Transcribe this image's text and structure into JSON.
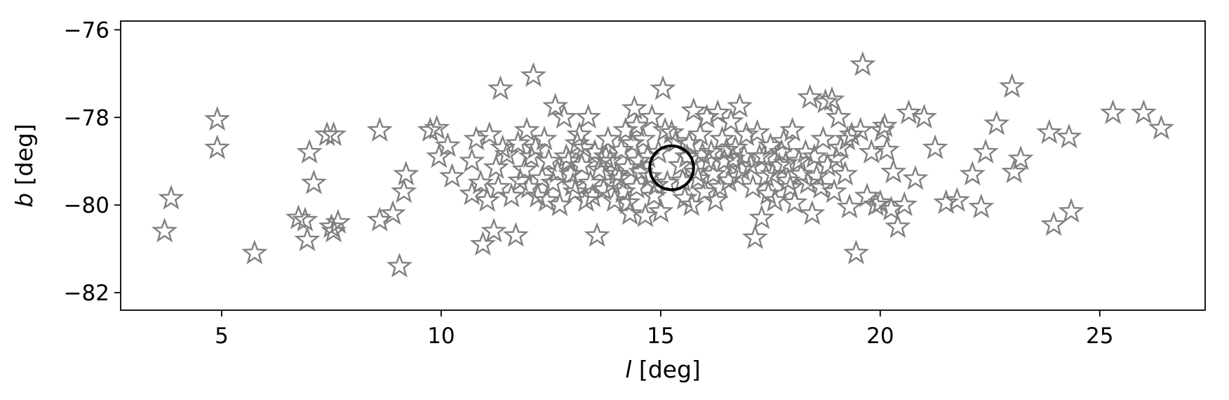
{
  "chart_data": {
    "type": "scatter",
    "title": "",
    "xlabel_var": "l",
    "xlabel_unit": " [deg]",
    "ylabel_var": "b",
    "ylabel_unit": " [deg]",
    "xlim": [
      2.7,
      27.4
    ],
    "ylim": [
      -82.4,
      -75.8
    ],
    "xticks": [
      5,
      10,
      15,
      20,
      25
    ],
    "yticks": [
      -76,
      -78,
      -80,
      -82
    ],
    "grid": false,
    "legend": "none",
    "marker_color": "#808080",
    "highlight_color": "#000000",
    "highlight": {
      "x": 15.25,
      "y": -79.15,
      "radius_deg": 0.5
    },
    "series": [
      {
        "marker": "star",
        "points": [
          [
            3.7,
            -80.6
          ],
          [
            3.85,
            -79.85
          ],
          [
            4.9,
            -78.05
          ],
          [
            4.9,
            -78.7
          ],
          [
            5.75,
            -81.1
          ],
          [
            6.75,
            -80.3
          ],
          [
            6.9,
            -80.35
          ],
          [
            6.95,
            -80.8
          ],
          [
            7.0,
            -78.8
          ],
          [
            7.1,
            -79.5
          ],
          [
            7.4,
            -78.4
          ],
          [
            7.55,
            -78.4
          ],
          [
            7.5,
            -80.5
          ],
          [
            7.55,
            -80.6
          ],
          [
            7.65,
            -80.4
          ],
          [
            8.6,
            -78.3
          ],
          [
            8.6,
            -80.35
          ],
          [
            8.9,
            -80.2
          ],
          [
            9.05,
            -81.4
          ],
          [
            9.15,
            -79.7
          ],
          [
            9.2,
            -79.3
          ],
          [
            9.75,
            -78.3
          ],
          [
            9.9,
            -78.25
          ],
          [
            9.95,
            -78.9
          ],
          [
            10.15,
            -78.65
          ],
          [
            10.25,
            -79.35
          ],
          [
            10.7,
            -79.0
          ],
          [
            10.7,
            -79.75
          ],
          [
            10.8,
            -78.5
          ],
          [
            10.9,
            -79.5
          ],
          [
            10.95,
            -80.9
          ],
          [
            11.05,
            -79.9
          ],
          [
            11.1,
            -78.4
          ],
          [
            11.2,
            -80.6
          ],
          [
            11.3,
            -79.6
          ],
          [
            11.4,
            -78.7
          ],
          [
            11.35,
            -77.35
          ],
          [
            11.6,
            -79.8
          ],
          [
            11.7,
            -80.7
          ],
          [
            11.75,
            -78.6
          ],
          [
            11.9,
            -79.2
          ],
          [
            11.95,
            -78.3
          ],
          [
            12.05,
            -78.9
          ],
          [
            12.1,
            -77.05
          ],
          [
            12.2,
            -79.8
          ],
          [
            12.3,
            -79.4
          ],
          [
            12.35,
            -78.5
          ],
          [
            12.45,
            -79.0
          ],
          [
            12.55,
            -79.5
          ],
          [
            12.6,
            -77.75
          ],
          [
            12.7,
            -80.0
          ],
          [
            12.8,
            -78.0
          ],
          [
            12.85,
            -78.9
          ],
          [
            12.95,
            -79.3
          ],
          [
            13.05,
            -79.7
          ],
          [
            13.1,
            -78.6
          ],
          [
            13.2,
            -79.1
          ],
          [
            13.3,
            -79.9
          ],
          [
            13.35,
            -78.0
          ],
          [
            13.4,
            -79.5
          ],
          [
            13.5,
            -78.8
          ],
          [
            13.55,
            -80.7
          ],
          [
            13.6,
            -79.2
          ],
          [
            13.7,
            -79.65
          ],
          [
            13.8,
            -78.5
          ],
          [
            13.85,
            -79.0
          ],
          [
            13.95,
            -79.9
          ],
          [
            14.05,
            -79.4
          ],
          [
            14.1,
            -78.75
          ],
          [
            14.2,
            -78.3
          ],
          [
            14.25,
            -79.15
          ],
          [
            14.3,
            -80.2
          ],
          [
            14.4,
            -77.8
          ],
          [
            14.45,
            -79.6
          ],
          [
            14.5,
            -79.0
          ],
          [
            14.6,
            -78.5
          ],
          [
            14.65,
            -80.25
          ],
          [
            14.75,
            -79.35
          ],
          [
            14.8,
            -78.0
          ],
          [
            14.85,
            -79.8
          ],
          [
            14.95,
            -78.8
          ],
          [
            15.0,
            -80.15
          ],
          [
            15.05,
            -77.35
          ],
          [
            15.1,
            -78.3
          ],
          [
            15.15,
            -79.5
          ],
          [
            15.35,
            -78.55
          ],
          [
            15.5,
            -79.45
          ],
          [
            15.6,
            -78.9
          ],
          [
            15.7,
            -80.0
          ],
          [
            15.75,
            -77.85
          ],
          [
            15.8,
            -79.25
          ],
          [
            15.9,
            -78.4
          ],
          [
            16.0,
            -79.7
          ],
          [
            16.05,
            -78.0
          ],
          [
            16.15,
            -78.8
          ],
          [
            16.2,
            -79.3
          ],
          [
            16.3,
            -77.9
          ],
          [
            16.4,
            -78.5
          ],
          [
            16.45,
            -79.0
          ],
          [
            16.55,
            -79.45
          ],
          [
            16.6,
            -78.1
          ],
          [
            16.7,
            -78.7
          ],
          [
            16.8,
            -77.75
          ],
          [
            16.85,
            -79.2
          ],
          [
            16.95,
            -78.4
          ],
          [
            17.1,
            -79.6
          ],
          [
            17.15,
            -80.75
          ],
          [
            17.25,
            -78.9
          ],
          [
            17.3,
            -80.3
          ],
          [
            17.4,
            -79.35
          ],
          [
            17.5,
            -78.65
          ],
          [
            17.6,
            -79.9
          ],
          [
            17.7,
            -79.1
          ],
          [
            17.8,
            -78.55
          ],
          [
            17.9,
            -79.45
          ],
          [
            18.0,
            -78.3
          ],
          [
            18.05,
            -79.95
          ],
          [
            18.15,
            -79.0
          ],
          [
            18.3,
            -78.8
          ],
          [
            18.4,
            -77.55
          ],
          [
            18.45,
            -80.2
          ],
          [
            18.55,
            -79.35
          ],
          [
            18.7,
            -78.5
          ],
          [
            18.75,
            -77.65
          ],
          [
            18.8,
            -79.1
          ],
          [
            18.9,
            -77.6
          ],
          [
            18.95,
            -79.7
          ],
          [
            19.05,
            -78.0
          ],
          [
            19.1,
            -78.7
          ],
          [
            19.2,
            -79.3
          ],
          [
            19.3,
            -80.05
          ],
          [
            19.35,
            -78.4
          ],
          [
            19.45,
            -81.1
          ],
          [
            19.55,
            -78.3
          ],
          [
            19.6,
            -76.8
          ],
          [
            19.7,
            -79.8
          ],
          [
            19.8,
            -78.8
          ],
          [
            19.9,
            -80.0
          ],
          [
            20.0,
            -79.95
          ],
          [
            20.05,
            -78.3
          ],
          [
            20.1,
            -78.2
          ],
          [
            20.15,
            -78.75
          ],
          [
            20.25,
            -80.1
          ],
          [
            20.3,
            -79.25
          ],
          [
            20.4,
            -80.5
          ],
          [
            20.55,
            -80.0
          ],
          [
            20.65,
            -77.9
          ],
          [
            20.8,
            -79.4
          ],
          [
            21.0,
            -78.0
          ],
          [
            21.25,
            -78.7
          ],
          [
            21.5,
            -79.95
          ],
          [
            21.75,
            -79.9
          ],
          [
            22.1,
            -79.3
          ],
          [
            22.3,
            -80.05
          ],
          [
            22.4,
            -78.8
          ],
          [
            22.65,
            -78.15
          ],
          [
            23.0,
            -77.3
          ],
          [
            23.05,
            -79.25
          ],
          [
            23.2,
            -78.95
          ],
          [
            23.85,
            -78.35
          ],
          [
            23.95,
            -80.45
          ],
          [
            24.3,
            -78.45
          ],
          [
            24.35,
            -80.15
          ],
          [
            25.3,
            -77.9
          ],
          [
            26.0,
            -77.9
          ],
          [
            26.4,
            -78.25
          ],
          [
            12.0,
            -79.6
          ],
          [
            12.4,
            -79.9
          ],
          [
            12.9,
            -79.0
          ],
          [
            13.15,
            -78.4
          ],
          [
            13.45,
            -79.8
          ],
          [
            13.75,
            -78.9
          ],
          [
            14.0,
            -79.3
          ],
          [
            14.15,
            -79.7
          ],
          [
            14.35,
            -78.6
          ],
          [
            14.55,
            -79.25
          ],
          [
            14.7,
            -78.9
          ],
          [
            14.9,
            -79.55
          ],
          [
            15.45,
            -79.1
          ],
          [
            15.65,
            -78.6
          ],
          [
            15.85,
            -79.4
          ],
          [
            16.1,
            -79.0
          ],
          [
            16.35,
            -79.6
          ],
          [
            16.5,
            -78.75
          ],
          [
            16.75,
            -79.35
          ],
          [
            16.9,
            -78.9
          ],
          [
            17.05,
            -79.1
          ],
          [
            17.35,
            -78.9
          ],
          [
            17.55,
            -79.3
          ],
          [
            17.75,
            -78.8
          ],
          [
            17.95,
            -79.6
          ],
          [
            18.2,
            -79.3
          ],
          [
            18.5,
            -78.9
          ],
          [
            18.65,
            -79.6
          ],
          [
            19.0,
            -78.95
          ],
          [
            19.25,
            -78.5
          ],
          [
            11.25,
            -79.15
          ],
          [
            11.5,
            -78.85
          ],
          [
            11.8,
            -79.45
          ],
          [
            12.15,
            -78.7
          ],
          [
            12.65,
            -79.25
          ],
          [
            13.0,
            -79.55
          ],
          [
            13.25,
            -78.7
          ],
          [
            13.65,
            -79.0
          ],
          [
            13.9,
            -79.5
          ],
          [
            14.25,
            -79.95
          ],
          [
            14.45,
            -78.2
          ],
          [
            15.25,
            -78.35
          ],
          [
            15.55,
            -79.85
          ],
          [
            15.95,
            -78.85
          ],
          [
            16.25,
            -79.9
          ],
          [
            16.65,
            -78.95
          ],
          [
            17.2,
            -78.35
          ],
          [
            17.45,
            -79.75
          ],
          [
            17.85,
            -79.05
          ],
          [
            18.35,
            -79.5
          ]
        ]
      }
    ]
  }
}
